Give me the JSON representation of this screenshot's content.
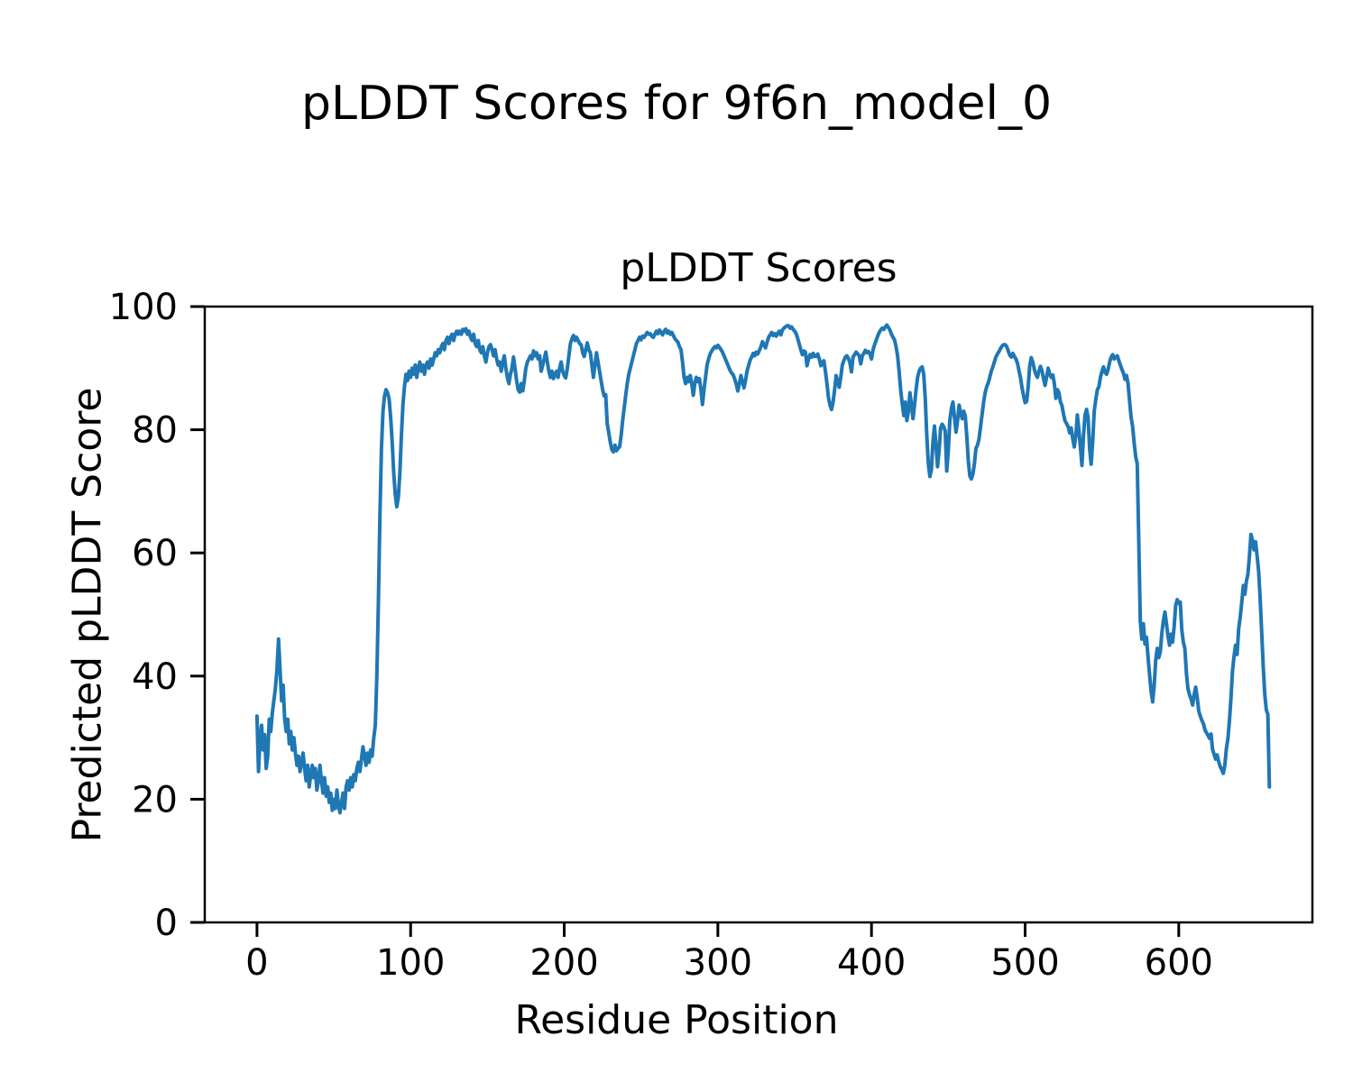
{
  "figure": {
    "suptitle": "pLDDT Scores for 9f6n_model_0",
    "background_color": "#ffffff",
    "text_color": "#000000"
  },
  "chart_data": {
    "type": "line",
    "title": "pLDDT Scores",
    "xlabel": "Residue Position",
    "ylabel": "Predicted pLDDT Score",
    "line_color": "#1f77b4",
    "grid": false,
    "legend": null,
    "x_ticks": [
      0,
      100,
      200,
      300,
      400,
      500,
      600
    ],
    "y_ticks": [
      0,
      20,
      40,
      60,
      80,
      100
    ],
    "xlim": [
      -34,
      687
    ],
    "ylim": [
      0,
      100
    ],
    "x_start": 0,
    "x_step": 1,
    "scores": [
      33.5,
      24.5,
      30,
      32,
      28,
      30.5,
      25,
      27,
      33,
      31,
      34,
      36,
      38,
      41,
      46,
      41,
      36,
      38.5,
      33,
      31,
      33,
      29,
      31,
      28,
      30,
      27.5,
      25.5,
      27,
      24.5,
      26,
      27.5,
      25,
      23,
      25.5,
      22,
      24,
      25.5,
      23.5,
      25,
      21.5,
      23,
      25.5,
      23,
      21,
      23.5,
      20.5,
      22,
      19.5,
      21,
      18.2,
      20,
      18.5,
      21.5,
      19,
      17.8,
      19.5,
      21,
      18.5,
      22,
      23,
      21.5,
      23.5,
      22,
      24,
      23,
      25,
      26,
      24.5,
      26.5,
      28.5,
      27,
      25.5,
      27.5,
      26,
      28,
      27,
      30,
      32,
      40,
      52,
      66,
      77,
      83,
      85.5,
      86.5,
      86,
      85,
      82,
      78,
      73,
      69.5,
      67.5,
      69,
      73,
      79,
      84,
      87,
      89,
      88,
      89.5,
      88.5,
      90,
      89,
      90.5,
      88.5,
      90,
      91,
      89.5,
      90.5,
      89,
      90.5,
      91,
      90,
      91.5,
      90.5,
      91.5,
      92.5,
      92,
      93,
      92.5,
      93.5,
      94,
      93,
      94.5,
      95,
      94,
      95,
      95.5,
      94.5,
      95.5,
      96,
      95.5,
      96,
      95.5,
      96.3,
      96,
      96.4,
      95.5,
      96,
      95,
      94.5,
      95.5,
      94,
      93.5,
      94.5,
      93,
      92.5,
      93.5,
      92,
      91,
      92.5,
      93.5,
      93.8,
      93,
      92,
      93,
      91.5,
      90.5,
      91,
      89.5,
      91,
      92,
      90,
      88.5,
      87.5,
      89,
      90,
      91.8,
      90,
      88,
      86.5,
      86.1,
      87.5,
      86.3,
      88,
      90,
      91,
      91.5,
      92,
      91.5,
      92.8,
      92,
      92.5,
      91.5,
      92,
      89.5,
      90.5,
      91.5,
      92.6,
      91,
      89.5,
      88.5,
      89.5,
      88.3,
      89,
      89.5,
      88.5,
      90,
      91,
      89.5,
      88.8,
      88.4,
      90,
      92,
      94,
      94.8,
      95.3,
      94.5,
      95,
      94.5,
      94,
      93.8,
      92.5,
      91.9,
      93,
      94.1,
      93,
      92.5,
      90.5,
      88.5,
      90.5,
      92.5,
      91,
      89.5,
      88,
      86.5,
      85.5,
      85.7,
      81,
      79.5,
      78,
      76.8,
      76.4,
      77.5,
      76.6,
      77,
      77.2,
      79,
      81.5,
      83.5,
      85.6,
      87.5,
      89,
      90,
      91,
      92,
      93,
      94,
      94.5,
      95,
      94.6,
      95.2,
      95,
      95.4,
      95.8,
      95.5,
      95.6,
      95.2,
      95,
      95.5,
      96,
      95.6,
      96.2,
      95.8,
      95.4,
      96,
      96.3,
      95.7,
      96,
      95.5,
      95.8,
      95.3,
      94.8,
      94.5,
      94.2,
      93.5,
      93,
      91,
      88.5,
      87.5,
      88.5,
      87.8,
      88.8,
      87.5,
      85.6,
      87.5,
      88.5,
      87.8,
      88.3,
      86.5,
      84.1,
      86.5,
      88.5,
      90.5,
      91.5,
      92.3,
      92.8,
      93.2,
      93.5,
      93.3,
      93.7,
      93.4,
      93,
      92.6,
      92,
      91.4,
      90.8,
      90.2,
      89.6,
      89.2,
      88.9,
      88.2,
      87.4,
      86.3,
      87.5,
      88.8,
      87.8,
      86.8,
      88,
      89.5,
      90.4,
      91.3,
      91.8,
      92.4,
      92,
      92.6,
      92.3,
      92.9,
      93.5,
      94.3,
      93.8,
      93.3,
      94.2,
      95,
      95.4,
      95.8,
      95.3,
      95.6,
      95.2,
      95.7,
      96,
      95.4,
      96.2,
      96.5,
      96.7,
      96.9,
      96.9,
      96.5,
      96.7,
      96.3,
      96,
      95.6,
      94.8,
      93.9,
      93,
      92.2,
      92.8,
      92.6,
      90.4,
      91.5,
      92.2,
      91.8,
      92.4,
      91.9,
      91.9,
      92.3,
      91.5,
      90.4,
      91,
      91.2,
      89.5,
      87.5,
      85.2,
      84,
      83.3,
      84.5,
      86.5,
      88.8,
      87.8,
      86.9,
      88.5,
      90.5,
      91.2,
      91.8,
      92,
      91.6,
      90.8,
      89.4,
      91.8,
      92.2,
      92.6,
      92.3,
      92,
      90.7,
      92,
      92.4,
      92.9,
      92.5,
      92.7,
      92.3,
      91.5,
      93,
      93.8,
      94.5,
      95.2,
      95.8,
      96.2,
      96.5,
      96.3,
      96.7,
      97,
      96.6,
      96.2,
      95.5,
      95,
      94.6,
      93.5,
      92,
      89.5,
      86.5,
      84.3,
      82.3,
      84.5,
      81.5,
      83,
      86,
      84,
      81.8,
      84,
      86.5,
      88.5,
      89.5,
      90,
      90.2,
      89,
      85,
      79,
      74.5,
      72.4,
      73.5,
      78,
      80.6,
      77.5,
      74,
      76.5,
      80.3,
      80.9,
      80.5,
      79.8,
      73.3,
      76.5,
      81.5,
      83.5,
      84.5,
      82,
      79.6,
      81.5,
      84,
      82.7,
      81.8,
      83,
      82.3,
      79,
      75,
      72.5,
      72,
      72.8,
      74.5,
      77,
      77.5,
      78.5,
      80.5,
      82.5,
      84.5,
      86,
      87,
      87.6,
      88.5,
      89.5,
      90.2,
      91,
      91.8,
      92.3,
      92.7,
      93.2,
      93.6,
      93.8,
      93.8,
      93.5,
      92.8,
      92.1,
      91.8,
      92.4,
      91.9,
      91.5,
      90.8,
      89.6,
      88.4,
      86.8,
      85.5,
      84.4,
      84.6,
      87,
      90.4,
      91.7,
      91,
      89.8,
      89,
      88.5,
      89.5,
      90.3,
      89.6,
      88.3,
      87.2,
      88.5,
      90,
      89,
      88.5,
      88.9,
      87.5,
      85.1,
      86.5,
      86,
      84.5,
      83.9,
      82.5,
      81.4,
      81,
      80.5,
      79.5,
      80.3,
      78.5,
      77.2,
      79,
      82.4,
      80,
      77.2,
      74.2,
      79,
      82.4,
      83.3,
      82,
      77,
      74.4,
      78,
      83,
      85,
      86.5,
      87,
      88.5,
      89.5,
      90.2,
      89.3,
      89,
      89.8,
      91,
      91.8,
      92.2,
      91.5,
      91.8,
      92,
      91.2,
      90.5,
      89.8,
      89.2,
      88.2,
      88.8,
      87.5,
      84.7,
      82,
      80.5,
      77.8,
      75.6,
      74.5,
      62,
      48.9,
      46,
      48.5,
      45.2,
      46.3,
      43,
      40.2,
      37.5,
      35.8,
      38.5,
      42.6,
      44.5,
      43,
      44,
      47,
      49,
      50.4,
      48.5,
      46.5,
      45,
      46.8,
      45.5,
      48,
      51.5,
      52.4,
      51.8,
      52,
      47.5,
      45.5,
      44.5,
      40.5,
      38,
      37,
      36.3,
      35.3,
      37,
      38.2,
      36.5,
      34.3,
      33.5,
      32.8,
      32.3,
      31.3,
      30.8,
      30.4,
      29.9,
      30.6,
      28.1,
      27.3,
      26.5,
      27.2,
      26.1,
      25.3,
      24.8,
      24.2,
      25.5,
      28.2,
      29.8,
      32.7,
      36.4,
      40.8,
      43.2,
      45,
      43.5,
      47.6,
      49.6,
      52,
      54.7,
      53.3,
      55.4,
      56.5,
      59.5,
      63,
      62,
      60.5,
      61.8,
      59.5,
      57,
      52.5,
      47,
      41.5,
      37,
      34.5,
      33.8,
      22
    ]
  }
}
